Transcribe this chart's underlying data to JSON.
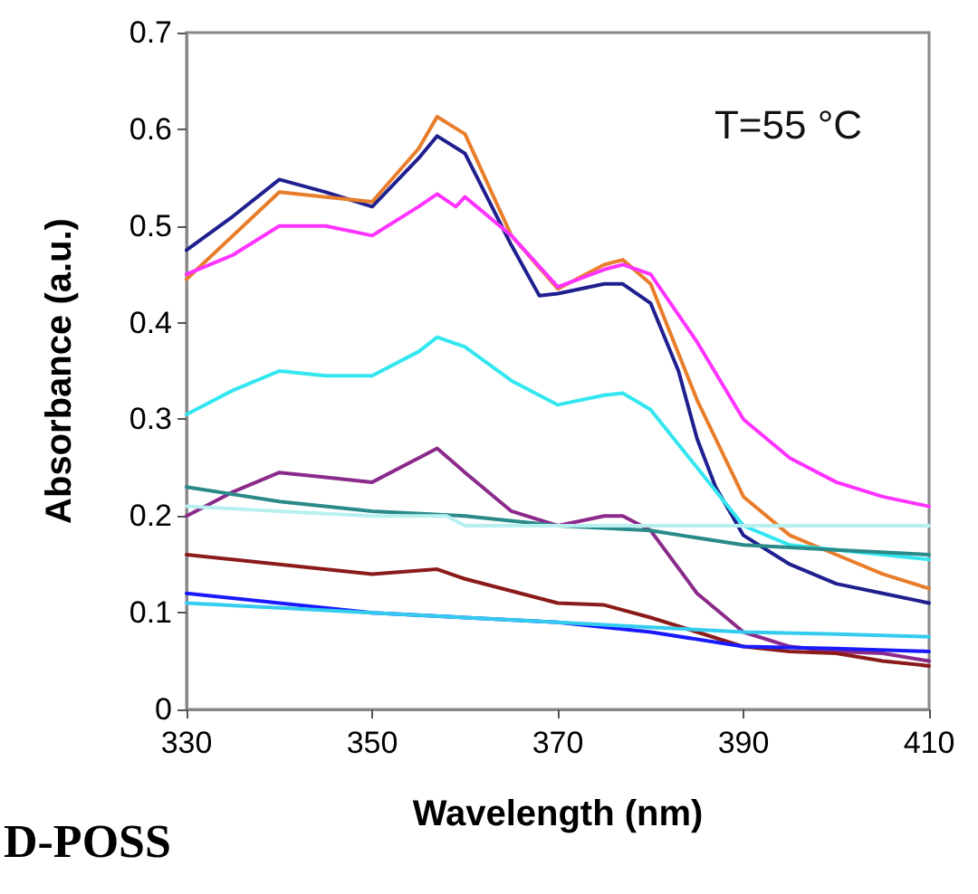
{
  "chart_data": {
    "type": "line",
    "xlabel": "Wavelength (nm)",
    "ylabel": "Absorbance (a.u.)",
    "annotations": [
      "T=55 °C",
      "D-POSS"
    ],
    "xlim": [
      330,
      410
    ],
    "xticks": [
      330,
      350,
      370,
      390,
      410
    ],
    "ylim": [
      0,
      0.7
    ],
    "yticks": [
      0,
      0.1,
      0.2,
      0.3,
      0.4,
      0.5,
      0.6,
      0.7
    ],
    "marker": "none",
    "line_style": "solid",
    "series": [
      {
        "color": "#1f1f8f",
        "x": [
          330,
          335,
          340,
          345,
          350,
          355,
          357,
          360,
          365,
          368,
          370,
          375,
          377,
          380,
          383,
          385,
          387,
          390,
          395,
          400,
          405,
          410
        ],
        "values": [
          0.475,
          0.51,
          0.548,
          0.535,
          0.52,
          0.57,
          0.593,
          0.575,
          0.48,
          0.428,
          0.43,
          0.44,
          0.44,
          0.42,
          0.35,
          0.28,
          0.23,
          0.18,
          0.15,
          0.13,
          0.12,
          0.11
        ]
      },
      {
        "color": "#e87d2a",
        "x": [
          330,
          335,
          340,
          345,
          350,
          355,
          357,
          360,
          365,
          370,
          375,
          377,
          380,
          385,
          390,
          395,
          400,
          405,
          410
        ],
        "values": [
          0.445,
          0.49,
          0.535,
          0.53,
          0.525,
          0.58,
          0.613,
          0.595,
          0.49,
          0.435,
          0.46,
          0.465,
          0.44,
          0.32,
          0.22,
          0.18,
          0.16,
          0.14,
          0.125
        ]
      },
      {
        "color": "#ff33ff",
        "x": [
          330,
          335,
          340,
          345,
          350,
          355,
          357,
          359,
          360,
          365,
          370,
          375,
          377,
          380,
          385,
          390,
          395,
          400,
          405,
          410
        ],
        "values": [
          0.45,
          0.47,
          0.5,
          0.5,
          0.49,
          0.52,
          0.533,
          0.52,
          0.53,
          0.49,
          0.437,
          0.455,
          0.46,
          0.45,
          0.38,
          0.3,
          0.26,
          0.235,
          0.22,
          0.21
        ]
      },
      {
        "color": "#33e6f0",
        "x": [
          330,
          335,
          340,
          345,
          350,
          355,
          357,
          360,
          365,
          370,
          375,
          377,
          380,
          385,
          390,
          395,
          400,
          405,
          410
        ],
        "values": [
          0.305,
          0.33,
          0.35,
          0.345,
          0.345,
          0.37,
          0.385,
          0.375,
          0.34,
          0.315,
          0.325,
          0.327,
          0.31,
          0.25,
          0.19,
          0.17,
          0.165,
          0.16,
          0.155
        ]
      },
      {
        "color": "#8b2a8b",
        "x": [
          330,
          335,
          340,
          345,
          350,
          355,
          357,
          360,
          365,
          370,
          375,
          377,
          380,
          385,
          390,
          395,
          400,
          405,
          410
        ],
        "values": [
          0.2,
          0.225,
          0.245,
          0.24,
          0.235,
          0.26,
          0.27,
          0.245,
          0.205,
          0.19,
          0.2,
          0.2,
          0.185,
          0.12,
          0.08,
          0.065,
          0.06,
          0.058,
          0.05
        ]
      },
      {
        "color": "#2a8a8a",
        "x": [
          330,
          340,
          350,
          360,
          370,
          380,
          390,
          400,
          410
        ],
        "values": [
          0.23,
          0.215,
          0.205,
          0.2,
          0.19,
          0.185,
          0.17,
          0.165,
          0.16
        ]
      },
      {
        "color": "#b8f0f0",
        "x": [
          330,
          340,
          350,
          358,
          360,
          370,
          380,
          390,
          400,
          410
        ],
        "values": [
          0.21,
          0.205,
          0.2,
          0.2,
          0.19,
          0.19,
          0.19,
          0.19,
          0.19,
          0.19
        ]
      },
      {
        "color": "#8b1a1a",
        "x": [
          330,
          340,
          350,
          357,
          360,
          370,
          375,
          380,
          385,
          390,
          395,
          400,
          405,
          410
        ],
        "values": [
          0.16,
          0.15,
          0.14,
          0.145,
          0.135,
          0.11,
          0.108,
          0.095,
          0.08,
          0.065,
          0.06,
          0.058,
          0.05,
          0.045
        ]
      },
      {
        "color": "#1a1aff",
        "x": [
          330,
          340,
          350,
          360,
          370,
          380,
          390,
          400,
          410
        ],
        "values": [
          0.12,
          0.11,
          0.1,
          0.095,
          0.09,
          0.08,
          0.065,
          0.063,
          0.06
        ]
      },
      {
        "color": "#33ccee",
        "x": [
          330,
          340,
          350,
          360,
          370,
          380,
          390,
          400,
          410
        ],
        "values": [
          0.11,
          0.105,
          0.1,
          0.095,
          0.09,
          0.085,
          0.08,
          0.078,
          0.075
        ]
      }
    ]
  }
}
